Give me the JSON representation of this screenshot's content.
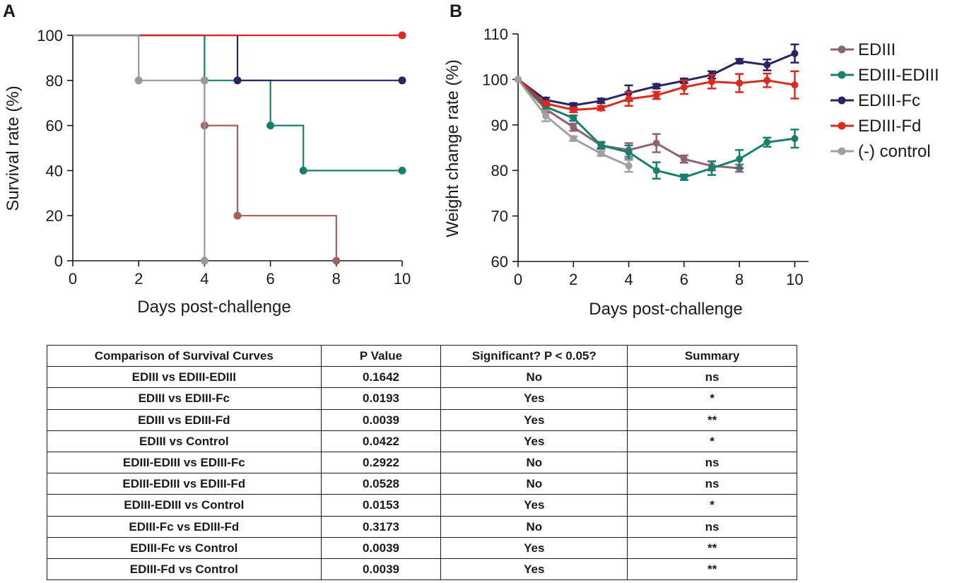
{
  "panel_a": {
    "letter": "A",
    "chart_data": {
      "type": "line",
      "subtype": "kaplan-meier-step",
      "title": "",
      "xlabel": "Days post-challenge",
      "ylabel": "Survival rate (%)",
      "xlim": [
        0,
        10
      ],
      "ylim": [
        0,
        100
      ],
      "xticks": [
        0,
        2,
        4,
        6,
        8,
        10
      ],
      "yticks": [
        0,
        20,
        40,
        60,
        80,
        100
      ],
      "grid": false,
      "series": [
        {
          "name": "EDIII",
          "color": "#a45f5f",
          "points": [
            [
              0,
              100
            ],
            [
              4,
              100
            ],
            [
              4,
              60
            ],
            [
              5,
              60
            ],
            [
              5,
              20
            ],
            [
              8,
              20
            ],
            [
              8,
              0
            ]
          ],
          "markers": [
            [
              4,
              60
            ],
            [
              5,
              20
            ],
            [
              8,
              0
            ]
          ]
        },
        {
          "name": "EDIII-EDIII",
          "color": "#17806d",
          "points": [
            [
              0,
              100
            ],
            [
              4,
              100
            ],
            [
              4,
              80
            ],
            [
              6,
              80
            ],
            [
              6,
              60
            ],
            [
              7,
              60
            ],
            [
              7,
              40
            ],
            [
              10,
              40
            ]
          ],
          "markers": [
            [
              4,
              80
            ],
            [
              6,
              60
            ],
            [
              7,
              40
            ],
            [
              10,
              40
            ]
          ]
        },
        {
          "name": "EDIII-Fc",
          "color": "#2b2462",
          "points": [
            [
              0,
              100
            ],
            [
              5,
              100
            ],
            [
              5,
              80
            ],
            [
              10,
              80
            ]
          ],
          "markers": [
            [
              5,
              80
            ],
            [
              10,
              80
            ]
          ]
        },
        {
          "name": "EDIII-Fd",
          "color": "#d92b20",
          "points": [
            [
              0,
              100
            ],
            [
              10,
              100
            ]
          ],
          "markers": [
            [
              10,
              100
            ]
          ]
        },
        {
          "name": "(-) control",
          "color": "#999999",
          "points": [
            [
              0,
              100
            ],
            [
              2,
              100
            ],
            [
              2,
              80
            ],
            [
              4,
              80
            ],
            [
              4,
              0
            ]
          ],
          "markers": [
            [
              2,
              80
            ],
            [
              4,
              80
            ],
            [
              4,
              0
            ]
          ]
        }
      ]
    }
  },
  "panel_b": {
    "letter": "B",
    "chart_data": {
      "type": "line",
      "title": "",
      "xlabel": "Days post-challenge",
      "ylabel": "Weight change rate (%)",
      "xlim": [
        0,
        10.5
      ],
      "ylim": [
        60,
        110
      ],
      "xticks": [
        0,
        2,
        4,
        6,
        8,
        10
      ],
      "yticks": [
        60,
        70,
        80,
        90,
        100,
        110
      ],
      "grid": false,
      "legend_position": "right",
      "series": [
        {
          "name": "EDIII",
          "color": "#8e6272",
          "x": [
            0,
            1,
            2,
            3,
            4,
            5,
            6,
            7,
            8
          ],
          "y": [
            100,
            93.5,
            89.5,
            85.5,
            84.5,
            86,
            82.5,
            81,
            80.5
          ],
          "err": [
            0,
            0.8,
            0.8,
            0.8,
            1.5,
            2,
            0.8,
            1,
            0.8
          ]
        },
        {
          "name": "EDIII-EDIII",
          "color": "#17806d",
          "x": [
            0,
            1,
            2,
            3,
            4,
            5,
            6,
            7,
            8,
            9,
            10
          ],
          "y": [
            100,
            94,
            91.5,
            85.5,
            84,
            80,
            78.5,
            80.5,
            82.5,
            86.2,
            87
          ],
          "err": [
            0,
            0.6,
            0.6,
            0.6,
            1.5,
            1.8,
            0.6,
            1.5,
            2,
            1,
            2
          ]
        },
        {
          "name": "EDIII-Fc",
          "color": "#2b2462",
          "x": [
            0,
            1,
            2,
            3,
            4,
            5,
            6,
            7,
            8,
            9,
            10
          ],
          "y": [
            100,
            95.5,
            94.3,
            95.3,
            97,
            98.5,
            99.7,
            101,
            104,
            103.2,
            105.7
          ],
          "err": [
            0,
            0.5,
            0.5,
            0.5,
            1.7,
            0.5,
            0.5,
            0.8,
            0.5,
            1.2,
            2
          ]
        },
        {
          "name": "EDIII-Fd",
          "color": "#d92b20",
          "x": [
            0,
            1,
            2,
            3,
            4,
            5,
            6,
            7,
            8,
            9,
            10
          ],
          "y": [
            100,
            94.7,
            93.3,
            93.7,
            95.7,
            96.5,
            98.3,
            99.5,
            99.2,
            99.8,
            98.8
          ],
          "err": [
            0,
            0.5,
            0.5,
            0.5,
            1.5,
            0.8,
            1.5,
            1.5,
            2,
            1.5,
            3
          ]
        },
        {
          "name": "(-) control",
          "color": "#a0a0a0",
          "x": [
            0,
            1,
            2,
            3,
            4
          ],
          "y": [
            100,
            92,
            87,
            83.7,
            81
          ],
          "err": [
            0,
            1.2,
            0.5,
            0.5,
            1.3
          ]
        }
      ]
    }
  },
  "table": {
    "headers": [
      "Comparison of Survival Curves",
      "P Value",
      "Significant? P < 0.05?",
      "Summary"
    ],
    "rows": [
      [
        "EDIII vs EDIII-EDIII",
        "0.1642",
        "No",
        "ns"
      ],
      [
        "EDIII vs EDIII-Fc",
        "0.0193",
        "Yes",
        "*"
      ],
      [
        "EDIII vs EDIII-Fd",
        "0.0039",
        "Yes",
        "**"
      ],
      [
        "EDIII vs Control",
        "0.0422",
        "Yes",
        "*"
      ],
      [
        "EDIII-EDIII vs EDIII-Fc",
        "0.2922",
        "No",
        "ns"
      ],
      [
        "EDIII-EDIII vs EDIII-Fd",
        "0.0528",
        "No",
        "ns"
      ],
      [
        "EDIII-EDIII vs Control",
        "0.0153",
        "Yes",
        "*"
      ],
      [
        "EDIII-Fc vs EDIII-Fd",
        "0.3173",
        "No",
        "ns"
      ],
      [
        "EDIII-Fc vs Control",
        "0.0039",
        "Yes",
        "**"
      ],
      [
        "EDIII-Fd vs Control",
        "0.0039",
        "Yes",
        "**"
      ]
    ]
  }
}
